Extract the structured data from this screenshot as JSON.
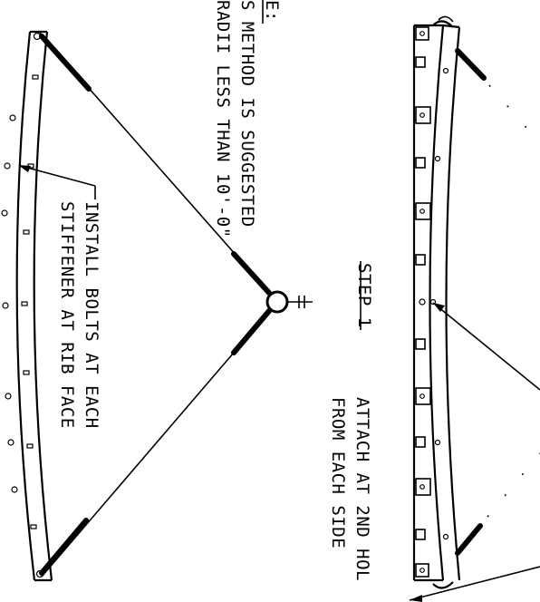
{
  "note": {
    "heading": "E:",
    "line1": "S METHOD IS SUGGESTED",
    "line2": "RADII LESS THAN 10'-0\""
  },
  "step_title": "STEP 1",
  "attach_note": {
    "line1": "ATTACH AT 2ND HOL",
    "line2": "FROM EACH SIDE"
  },
  "install_note": {
    "line1": "INSTALL BOLTS AT EACH",
    "line2": "STIFFENER AT RIB FACE"
  }
}
